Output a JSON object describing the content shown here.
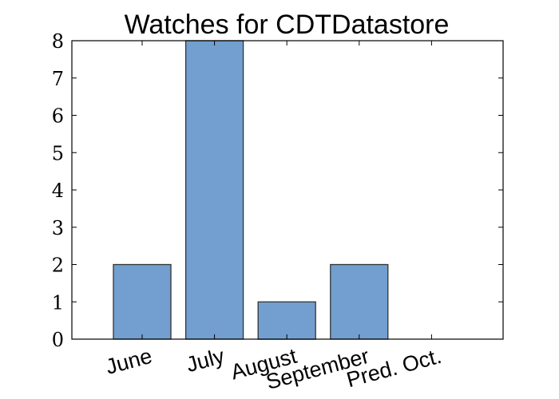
{
  "chart_data": {
    "type": "bar",
    "title": "Watches for CDTDatastore",
    "xlabel": "",
    "ylabel": "",
    "categories": [
      "June",
      "July",
      "August",
      "September",
      "Pred. Oct."
    ],
    "values": [
      2,
      8,
      1,
      2,
      0
    ],
    "ylim": [
      0,
      8
    ],
    "yticks": [
      0,
      1,
      2,
      3,
      4,
      5,
      6,
      7,
      8
    ],
    "grid": false,
    "bar_color": "#729fcf",
    "bar_edge_color": "#333333"
  }
}
